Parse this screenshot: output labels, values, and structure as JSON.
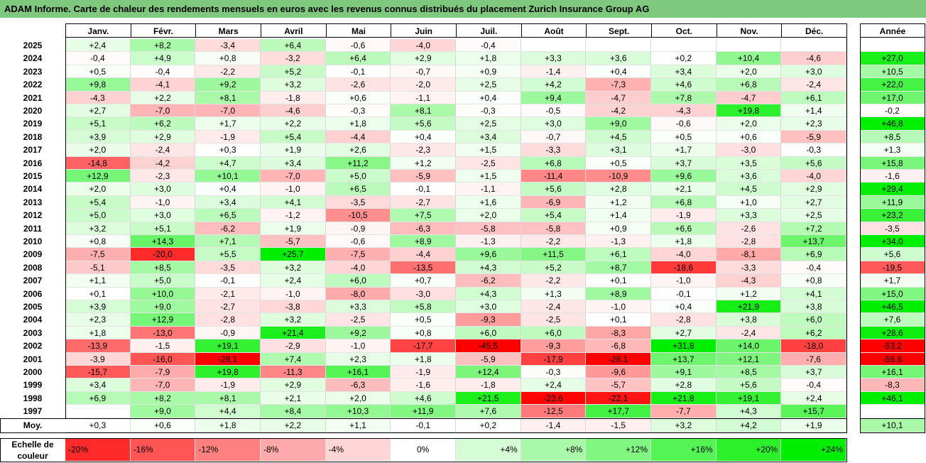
{
  "title": "ADAM Informe. Carte de chaleur des rendements mensuels en euros avec les revenus connus distribués du placement Zurich Insurance Group AG",
  "colors": {
    "title_bg": "#7fc97f",
    "positive": "#00ee00",
    "negative": "#ff0000",
    "neutral": "#ffffff"
  },
  "months": [
    "Janv.",
    "Févr.",
    "Mars",
    "Avril",
    "Mai",
    "Juin",
    "Juil.",
    "Août",
    "Sept.",
    "Oct.",
    "Nov.",
    "Déc."
  ],
  "year_header": "Année",
  "avg_label": "Moy.",
  "scale_label": "Echelle de couleur",
  "chart_data": {
    "type": "heatmap",
    "rows": [
      {
        "year": "2025",
        "m": [
          "+2,4",
          "+8,2",
          "-3,4",
          "+6,4",
          "-0,6",
          "-4,0",
          "-0,4",
          "",
          "",
          "",
          "",
          ""
        ],
        "y": ""
      },
      {
        "year": "2024",
        "m": [
          "-0,4",
          "+4,9",
          "+0,8",
          "-3,2",
          "+6,4",
          "+2,9",
          "+1,8",
          "+3,3",
          "+3,6",
          "+0,2",
          "+10,4",
          "-4,6"
        ],
        "y": "+27,0"
      },
      {
        "year": "2023",
        "m": [
          "+0,5",
          "-0,4",
          "-2,2",
          "+5,2",
          "-0,1",
          "-0,7",
          "+0,9",
          "-1,4",
          "+0,4",
          "+3,4",
          "+2,0",
          "+3,0"
        ],
        "y": "+10,5"
      },
      {
        "year": "2022",
        "m": [
          "+9,8",
          "-4,1",
          "+9,2",
          "+3,2",
          "-2,6",
          "-2,0",
          "+2,5",
          "+4,2",
          "-7,3",
          "+4,6",
          "+6,8",
          "-2,4"
        ],
        "y": "+22,0"
      },
      {
        "year": "2021",
        "m": [
          "-4,3",
          "+2,2",
          "+8,1",
          "-1,8",
          "+0,6",
          "-1,1",
          "+0,4",
          "+9,4",
          "-4,7",
          "+7,8",
          "-4,7",
          "+6,1"
        ],
        "y": "+17,0"
      },
      {
        "year": "2020",
        "m": [
          "+2,7",
          "-7,0",
          "-7,0",
          "-4,6",
          "-0,3",
          "+8,1",
          "-0,3",
          "-0,5",
          "-4,2",
          "-4,3",
          "+19,8",
          "+1,4"
        ],
        "y": "-0,2"
      },
      {
        "year": "2019",
        "m": [
          "+5,1",
          "+6,2",
          "+1,7",
          "+2,2",
          "+1,8",
          "+5,6",
          "+2,5",
          "+3,0",
          "+9,0",
          "-0,6",
          "+2,0",
          "+2,3"
        ],
        "y": "+46,8"
      },
      {
        "year": "2018",
        "m": [
          "+3,9",
          "+2,9",
          "-1,9",
          "+5,4",
          "-4,4",
          "+0,4",
          "+3,4",
          "-0,7",
          "+4,5",
          "+0,5",
          "+0,6",
          "-5,9"
        ],
        "y": "+8,5"
      },
      {
        "year": "2017",
        "m": [
          "+2,0",
          "-2,4",
          "+0,3",
          "+1,9",
          "+2,6",
          "-2,3",
          "+1,5",
          "-3,3",
          "+3,1",
          "+1,7",
          "-3,0",
          "-0,3"
        ],
        "y": "+1,3"
      },
      {
        "year": "2016",
        "m": [
          "-14,8",
          "-4,2",
          "+4,7",
          "+3,4",
          "+11,2",
          "+1,2",
          "-2,5",
          "+6,8",
          "+0,5",
          "+3,7",
          "+3,5",
          "+5,6"
        ],
        "y": "+15,8"
      },
      {
        "year": "2015",
        "m": [
          "+12,9",
          "-2,3",
          "+10,1",
          "-7,0",
          "+5,0",
          "-5,9",
          "+1,5",
          "-11,4",
          "-10,9",
          "+9,6",
          "+3,6",
          "-4,0"
        ],
        "y": "-1,6"
      },
      {
        "year": "2014",
        "m": [
          "+2,0",
          "+3,0",
          "+0,4",
          "-1,0",
          "+6,5",
          "-0,1",
          "-1,1",
          "+5,6",
          "+2,8",
          "+2,1",
          "+4,5",
          "+2,9"
        ],
        "y": "+29,4"
      },
      {
        "year": "2013",
        "m": [
          "+5,4",
          "-1,0",
          "+3,4",
          "+4,1",
          "-3,5",
          "-2,7",
          "+1,6",
          "-6,9",
          "+1,2",
          "+6,8",
          "+1,0",
          "+2,7"
        ],
        "y": "+11,9"
      },
      {
        "year": "2012",
        "m": [
          "+5,0",
          "+3,0",
          "+6,5",
          "-1,2",
          "-10,5",
          "+7,5",
          "+2,0",
          "+5,4",
          "+1,4",
          "-1,9",
          "+3,3",
          "+2,5"
        ],
        "y": "+23,2"
      },
      {
        "year": "2011",
        "m": [
          "+3,2",
          "+5,1",
          "-6,2",
          "+1,9",
          "-0,9",
          "-6,3",
          "-5,8",
          "-5,8",
          "+0,9",
          "+6,6",
          "-2,6",
          "+7,2"
        ],
        "y": "-3,5"
      },
      {
        "year": "2010",
        "m": [
          "+0,8",
          "+14,3",
          "+7,1",
          "-5,7",
          "-0,6",
          "+8,9",
          "-1,3",
          "-2,2",
          "-1,3",
          "+1,8",
          "-2,8",
          "+13,7"
        ],
        "y": "+34,0"
      },
      {
        "year": "2009",
        "m": [
          "-7,5",
          "-20,0",
          "+5,5",
          "+25,7",
          "-7,5",
          "-4,4",
          "+9,6",
          "+11,5",
          "+6,1",
          "-4,0",
          "-8,1",
          "+6,9"
        ],
        "y": "+5,6"
      },
      {
        "year": "2008",
        "m": [
          "-5,1",
          "+8,5",
          "-3,5",
          "+3,2",
          "-4,0",
          "-13,5",
          "+4,3",
          "+5,2",
          "+8,7",
          "-18,6",
          "-3,3",
          "-0,4"
        ],
        "y": "-19,5"
      },
      {
        "year": "2007",
        "m": [
          "+1,1",
          "+5,0",
          "-0,1",
          "+2,4",
          "+6,0",
          "+0,7",
          "-6,2",
          "-2,2",
          "+0,1",
          "-1,0",
          "-4,3",
          "+0,8"
        ],
        "y": "+1,7"
      },
      {
        "year": "2006",
        "m": [
          "+0,1",
          "+10,0",
          "-2,1",
          "-1,0",
          "-8,0",
          "-3,0",
          "+4,3",
          "+1,3",
          "+8,9",
          "-0,1",
          "+1,2",
          "+4,1"
        ],
        "y": "+15,0"
      },
      {
        "year": "2005",
        "m": [
          "+3,9",
          "+9,0",
          "-2,7",
          "-3,8",
          "+3,3",
          "+5,8",
          "+3,0",
          "-2,4",
          "-1,0",
          "+0,4",
          "+21,9",
          "+3,8"
        ],
        "y": "+46,5"
      },
      {
        "year": "2004",
        "m": [
          "+2,3",
          "+12,9",
          "-2,8",
          "+3,2",
          "-2,5",
          "+0,5",
          "-9,3",
          "-2,5",
          "+0,1",
          "-2,8",
          "+3,8",
          "+6,0"
        ],
        "y": "+7,6"
      },
      {
        "year": "2003",
        "m": [
          "+1,8",
          "-13,0",
          "-0,9",
          "+21,4",
          "+9,2",
          "+0,8",
          "+6,0",
          "+6,0",
          "-8,3",
          "+2,7",
          "-2,4",
          "+6,2"
        ],
        "y": "+28,6"
      },
      {
        "year": "2002",
        "m": [
          "-13,9",
          "-1,5",
          "+19,1",
          "-2,9",
          "-1,0",
          "-17,7",
          "-45,5",
          "-9,3",
          "-6,8",
          "+31,8",
          "+14,0",
          "-18,0"
        ],
        "y": "-53,2"
      },
      {
        "year": "2001",
        "m": [
          "-3,9",
          "-16,0",
          "-28,1",
          "+7,4",
          "+2,3",
          "+1,8",
          "-5,9",
          "-17,9",
          "-28,1",
          "+13,7",
          "+12,1",
          "-7,6"
        ],
        "y": "-56,8"
      },
      {
        "year": "2000",
        "m": [
          "-15,7",
          "-7,9",
          "+19,8",
          "-11,3",
          "+16,1",
          "-1,9",
          "+12,4",
          "-0,3",
          "-9,6",
          "+9,1",
          "+8,5",
          "+3,7"
        ],
        "y": "+16,1"
      },
      {
        "year": "1999",
        "m": [
          "+3,4",
          "-7,0",
          "-1,9",
          "+2,9",
          "-6,3",
          "-1,6",
          "-1,8",
          "+2,4",
          "-5,7",
          "+2,8",
          "+5,6",
          "-0,4"
        ],
        "y": "-8,3"
      },
      {
        "year": "1998",
        "m": [
          "+6,9",
          "+8,2",
          "+8,1",
          "+2,1",
          "+2,0",
          "+4,6",
          "+21,5",
          "-23,6",
          "-22,1",
          "+21,8",
          "+19,1",
          "+2,4"
        ],
        "y": "+46,1"
      },
      {
        "year": "1997",
        "m": [
          "",
          "+9,0",
          "+4,4",
          "+8,4",
          "+10,3",
          "+11,9",
          "+7,6",
          "-12,5",
          "+17,7",
          "-7,7",
          "+4,3",
          "+15,7"
        ],
        "y": ""
      }
    ],
    "average": {
      "m": [
        "+0,3",
        "+0,6",
        "+1,8",
        "+2,2",
        "+1,1",
        "-0,1",
        "+0,2",
        "-1,4",
        "-1,5",
        "+3,2",
        "+4,2",
        "+1,9"
      ],
      "y": "+10,1"
    },
    "scale": [
      "-20%",
      "-16%",
      "-12%",
      "-8%",
      "-4%",
      "0%",
      "+4%",
      "+8%",
      "+12%",
      "+16%",
      "+20%",
      "+24%"
    ]
  }
}
